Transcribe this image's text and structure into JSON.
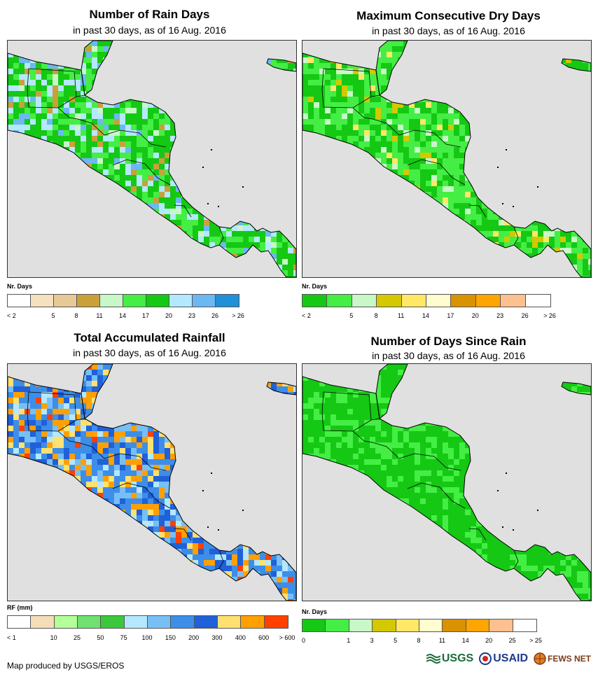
{
  "panels": [
    {
      "title": "Number of Rain Days",
      "subtitle": "in past 30 days, as of 16 Aug. 2016",
      "legend_label": "Nr. Days",
      "legend_colors": [
        "#ffffff",
        "#f5e1c0",
        "#e6c994",
        "#c9a03a",
        "#c8f7c8",
        "#44ee44",
        "#14c814",
        "#b4e8ff",
        "#6cb8f2",
        "#2090d8"
      ],
      "legend_ticks": [
        "< 2",
        "5",
        "8",
        "11",
        "14",
        "17",
        "20",
        "23",
        "26",
        "> 26"
      ],
      "palette": [
        "#14c814",
        "#44ee44",
        "#b4e8ff",
        "#6cb8f2",
        "#c9a03a",
        "#c8f7c8"
      ],
      "weights": [
        40,
        22,
        18,
        8,
        6,
        6
      ],
      "seed": 11
    },
    {
      "title": "Maximum Consecutive Dry Days",
      "subtitle": "in past 30 days, as of 16 Aug. 2016",
      "legend_label": "Nr. Days",
      "legend_colors": [
        "#14c814",
        "#44ee44",
        "#c8f7c8",
        "#d4c800",
        "#ffe866",
        "#fffcd0",
        "#d99200",
        "#ffa500",
        "#ffc090",
        "#ffffff"
      ],
      "legend_ticks": [
        "< 2",
        "5",
        "8",
        "11",
        "14",
        "17",
        "20",
        "23",
        "26",
        "> 26"
      ],
      "palette": [
        "#44ee44",
        "#14c814",
        "#c8f7c8",
        "#d4c800",
        "#ffe866"
      ],
      "weights": [
        45,
        40,
        8,
        4,
        3
      ],
      "seed": 23
    },
    {
      "title": "Total Accumulated Rainfall",
      "subtitle": "in past 30 days, as of 16 Aug. 2016",
      "legend_label": "RF (mm)",
      "legend_colors": [
        "#ffffff",
        "#f5ddb8",
        "#b4ff9a",
        "#70e070",
        "#3cc83c",
        "#b4e8ff",
        "#78bff5",
        "#3c8ee8",
        "#2060d8",
        "#ffe070",
        "#ffa000",
        "#ff4000"
      ],
      "legend_ticks": [
        "< 1",
        "10",
        "25",
        "50",
        "75",
        "100",
        "150",
        "200",
        "300",
        "400",
        "600",
        "> 600"
      ],
      "palette": [
        "#3c8ee8",
        "#2060d8",
        "#ffa000",
        "#ffe070",
        "#78bff5",
        "#b4e8ff",
        "#ff4000"
      ],
      "weights": [
        30,
        18,
        20,
        10,
        12,
        7,
        3
      ],
      "seed": 37
    },
    {
      "title": "Number of Days Since Rain",
      "subtitle": "in past 30 days, as of 16 Aug. 2016",
      "legend_label": "Nr. Days",
      "legend_colors": [
        "#14c814",
        "#44ee44",
        "#c8f7c8",
        "#d4c800",
        "#ffe866",
        "#fffcd0",
        "#d99200",
        "#ffa500",
        "#ffc090",
        "#ffffff"
      ],
      "legend_ticks": [
        "0",
        "1",
        "3",
        "5",
        "8",
        "11",
        "14",
        "20",
        "25",
        "> 25"
      ],
      "palette": [
        "#14c814",
        "#44ee44"
      ],
      "weights": [
        72,
        28
      ],
      "seed": 51
    }
  ],
  "credit": "Map produced by USGS/EROS",
  "logos": {
    "usgs": "USGS",
    "usaid": "USAID",
    "fews": "FEWS NET"
  }
}
